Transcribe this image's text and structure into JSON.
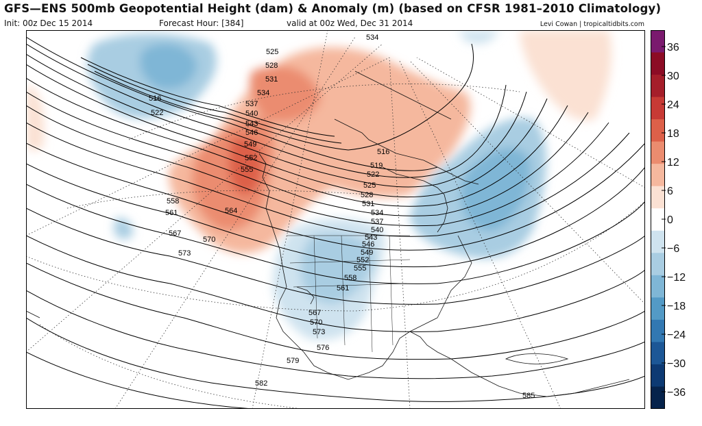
{
  "title": "GFS—ENS 500mb Geopotential Height (dam) & Anomaly (m) (based on CFSR 1981–2010 Climatology)",
  "init": "Init: 00z Dec 15 2014",
  "forecast_hour": "Forecast Hour: [384]",
  "valid": "valid at 00z Wed, Dec 31 2014",
  "credit": "Levi Cowan | tropicaltidbits.com",
  "colorbar": {
    "labels": [
      "36",
      "30",
      "24",
      "18",
      "12",
      "6",
      "0",
      "−6",
      "−12",
      "−18",
      "−24",
      "−30",
      "−36"
    ],
    "colors": [
      "#7a1a6e",
      "#8c0c25",
      "#a51e2a",
      "#c73a35",
      "#dd6049",
      "#eb8c6f",
      "#f5b89e",
      "#fbe1d3",
      "#ffffff",
      "#cfe3ef",
      "#a9cde2",
      "#7fb6d6",
      "#539ac6",
      "#3278b2",
      "#1c5796",
      "#0d3a73",
      "#06234b"
    ]
  },
  "contour_labels": [
    "516",
    "522",
    "525",
    "528",
    "531",
    "534",
    "537",
    "540",
    "543",
    "546",
    "549",
    "552",
    "555",
    "558",
    "561",
    "564",
    "567",
    "570",
    "573",
    "579",
    "582",
    "585",
    "516",
    "519",
    "522",
    "525",
    "528",
    "531",
    "534",
    "537",
    "540",
    "543",
    "546",
    "549",
    "552",
    "555",
    "558",
    "561",
    "567",
    "570",
    "573",
    "576",
    "534"
  ]
}
